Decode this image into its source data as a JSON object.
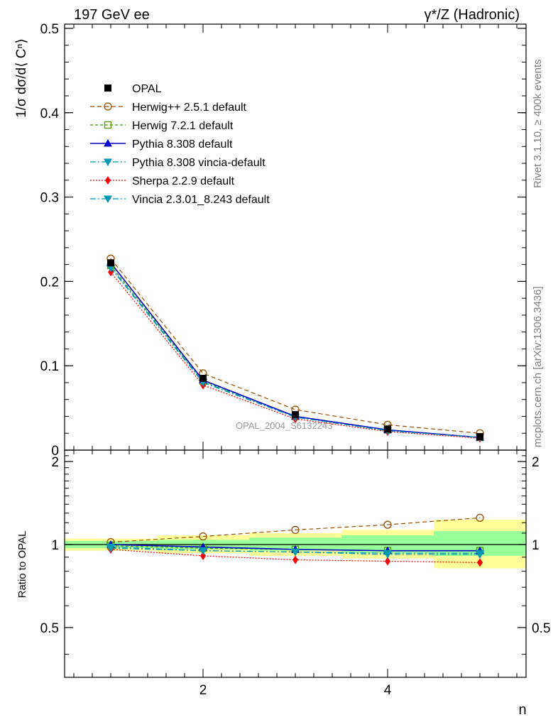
{
  "header": {
    "left_title": "197 GeV ee",
    "right_title": "γ*/Z (Hadronic)"
  },
  "side_labels": {
    "rivet": "Rivet 3.1.10, ≥ 400k events",
    "mcplots": "mcplots.cern.ch [arXiv:1306.3436]"
  },
  "watermark": "OPAL_2004_S6132243",
  "chart_data": [
    {
      "type": "line",
      "panel": "main",
      "ylabel": "1/σ dσ/d⟨ Cⁿ⟩",
      "xlabel": "",
      "xlim": [
        0.5,
        5.5
      ],
      "ylim": [
        0,
        0.505
      ],
      "yticks": [
        0,
        0.1,
        0.2,
        0.3,
        0.4,
        0.5
      ],
      "ytick_labels": [
        "0",
        "0.1",
        "0.2",
        "0.3",
        "0.4",
        "0.5"
      ],
      "x": [
        1,
        2,
        3,
        4,
        5
      ],
      "legend_position": "top-left",
      "series": [
        {
          "name": "OPAL",
          "values": [
            0.222,
            0.085,
            0.042,
            0.025,
            0.016
          ],
          "color": "#000000",
          "marker": "filled-square",
          "dash": "none"
        },
        {
          "name": "Herwig++ 2.5.1 default",
          "values": [
            0.227,
            0.091,
            0.048,
            0.03,
            0.02
          ],
          "color": "#994C00",
          "marker": "open-circle",
          "dash": "6,4"
        },
        {
          "name": "Herwig 7.2.1 default",
          "values": [
            0.219,
            0.082,
            0.04,
            0.024,
            0.015
          ],
          "color": "#4C9900",
          "marker": "open-square",
          "dash": "4,3"
        },
        {
          "name": "Pythia 8.308 default",
          "values": [
            0.222,
            0.083,
            0.04,
            0.024,
            0.015
          ],
          "color": "#0000CC",
          "marker": "filled-triangle-up",
          "dash": "none"
        },
        {
          "name": "Pythia 8.308 vincia-default",
          "values": [
            0.217,
            0.081,
            0.039,
            0.023,
            0.015
          ],
          "color": "#0099B2",
          "marker": "filled-triangle-down",
          "dash": "8,3,2,3"
        },
        {
          "name": "Sherpa 2.2.9 default",
          "values": [
            0.211,
            0.077,
            0.037,
            0.022,
            0.014
          ],
          "color": "#FF0000",
          "marker": "filled-diamond",
          "dash": "2,2"
        },
        {
          "name": "Vincia 2.3.01_8.243 default",
          "values": [
            0.216,
            0.08,
            0.039,
            0.023,
            0.015
          ],
          "color": "#0099B2",
          "marker": "filled-triangle-down",
          "dash": "8,3,2,3"
        }
      ]
    },
    {
      "type": "line",
      "panel": "ratio",
      "ylabel": "Ratio to OPAL",
      "xlabel": "n",
      "xlim": [
        0.5,
        5.5
      ],
      "ylim": [
        0.33,
        2.2
      ],
      "yticks": [
        0.5,
        1,
        2
      ],
      "ytick_labels": [
        "0.5",
        "1",
        "2"
      ],
      "xticks": [
        2,
        4
      ],
      "xtick_labels": [
        "2",
        "4"
      ],
      "x": [
        1,
        2,
        3,
        4,
        5
      ],
      "bands": {
        "bins": [
          [
            0.5,
            1.5
          ],
          [
            1.5,
            2.5
          ],
          [
            2.5,
            3.5
          ],
          [
            3.5,
            4.5
          ],
          [
            4.5,
            5.5
          ]
        ],
        "yellow": [
          [
            0.95,
            1.05
          ],
          [
            0.93,
            1.08
          ],
          [
            0.91,
            1.1
          ],
          [
            0.89,
            1.13
          ],
          [
            0.82,
            1.23
          ]
        ],
        "green": [
          [
            0.97,
            1.03
          ],
          [
            0.96,
            1.04
          ],
          [
            0.95,
            1.06
          ],
          [
            0.93,
            1.08
          ],
          [
            0.91,
            1.12
          ]
        ]
      },
      "series": [
        {
          "name": "OPAL",
          "values": [
            1.0,
            1.0,
            1.0,
            1.0,
            1.0
          ],
          "color": "#000000",
          "marker": "none",
          "dash": "none"
        },
        {
          "name": "Herwig++ 2.5.1 default",
          "values": [
            1.02,
            1.07,
            1.13,
            1.18,
            1.25
          ],
          "color": "#994C00",
          "marker": "open-circle",
          "dash": "6,4"
        },
        {
          "name": "Herwig 7.2.1 default",
          "values": [
            0.99,
            0.97,
            0.96,
            0.95,
            0.95
          ],
          "color": "#4C9900",
          "marker": "open-square",
          "dash": "4,3"
        },
        {
          "name": "Pythia 8.308 default",
          "values": [
            1.0,
            0.98,
            0.96,
            0.95,
            0.95
          ],
          "color": "#0000CC",
          "marker": "filled-triangle-up",
          "dash": "none"
        },
        {
          "name": "Pythia 8.308 vincia-default",
          "values": [
            0.98,
            0.95,
            0.94,
            0.93,
            0.93
          ],
          "color": "#0099B2",
          "marker": "filled-triangle-down",
          "dash": "8,3,2,3"
        },
        {
          "name": "Sherpa 2.2.9 default",
          "values": [
            0.96,
            0.91,
            0.88,
            0.87,
            0.86
          ],
          "color": "#FF0000",
          "marker": "filled-diamond",
          "dash": "2,2"
        },
        {
          "name": "Vincia 2.3.01_8.243 default",
          "values": [
            0.97,
            0.95,
            0.94,
            0.92,
            0.92
          ],
          "color": "#0099B2",
          "marker": "filled-triangle-down",
          "dash": "8,3,2,3"
        }
      ]
    }
  ]
}
